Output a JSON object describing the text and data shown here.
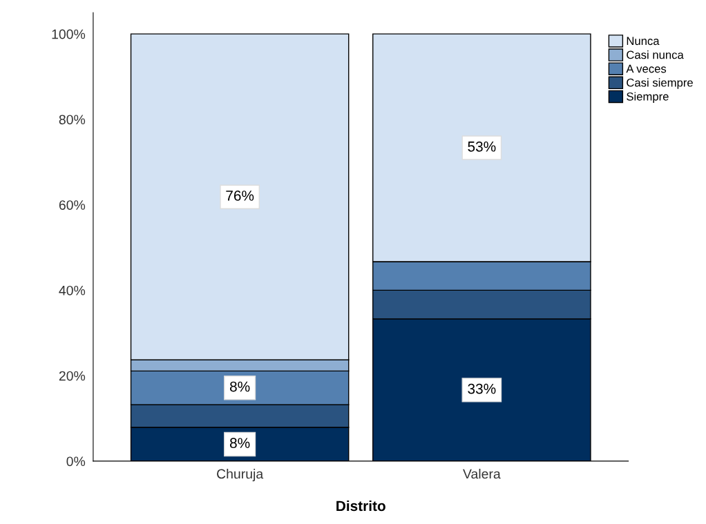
{
  "chart_data": {
    "type": "bar",
    "stacked": true,
    "xlabel": "Distrito",
    "categories": [
      "Churuja",
      "Valera"
    ],
    "ylim": [
      0,
      105
    ],
    "yticks": [
      {
        "value": 0,
        "label": "0%"
      },
      {
        "value": 20,
        "label": "20%"
      },
      {
        "value": 40,
        "label": "40%"
      },
      {
        "value": 60,
        "label": "60%"
      },
      {
        "value": 80,
        "label": "80%"
      },
      {
        "value": 100,
        "label": "100%"
      }
    ],
    "grid": false,
    "legend": "top right",
    "series": [
      {
        "name": "Siempre",
        "color": "#002e5e",
        "values": [
          7.9,
          33.3
        ],
        "value_labels": [
          "8%",
          "33%"
        ]
      },
      {
        "name": "Casi siempre",
        "color": "#2a5380",
        "values": [
          5.3,
          6.7
        ],
        "value_labels": [
          null,
          null
        ]
      },
      {
        "name": "A veces",
        "color": "#5480b0",
        "values": [
          7.9,
          6.7
        ],
        "value_labels": [
          "8%",
          null
        ]
      },
      {
        "name": "Casi nunca",
        "color": "#8eaed2",
        "values": [
          2.6,
          0
        ],
        "value_labels": [
          null,
          null
        ]
      },
      {
        "name": "Nunca",
        "color": "#d3e2f3",
        "values": [
          76.3,
          53.3
        ],
        "value_labels": [
          "76%",
          "53%"
        ]
      }
    ]
  }
}
